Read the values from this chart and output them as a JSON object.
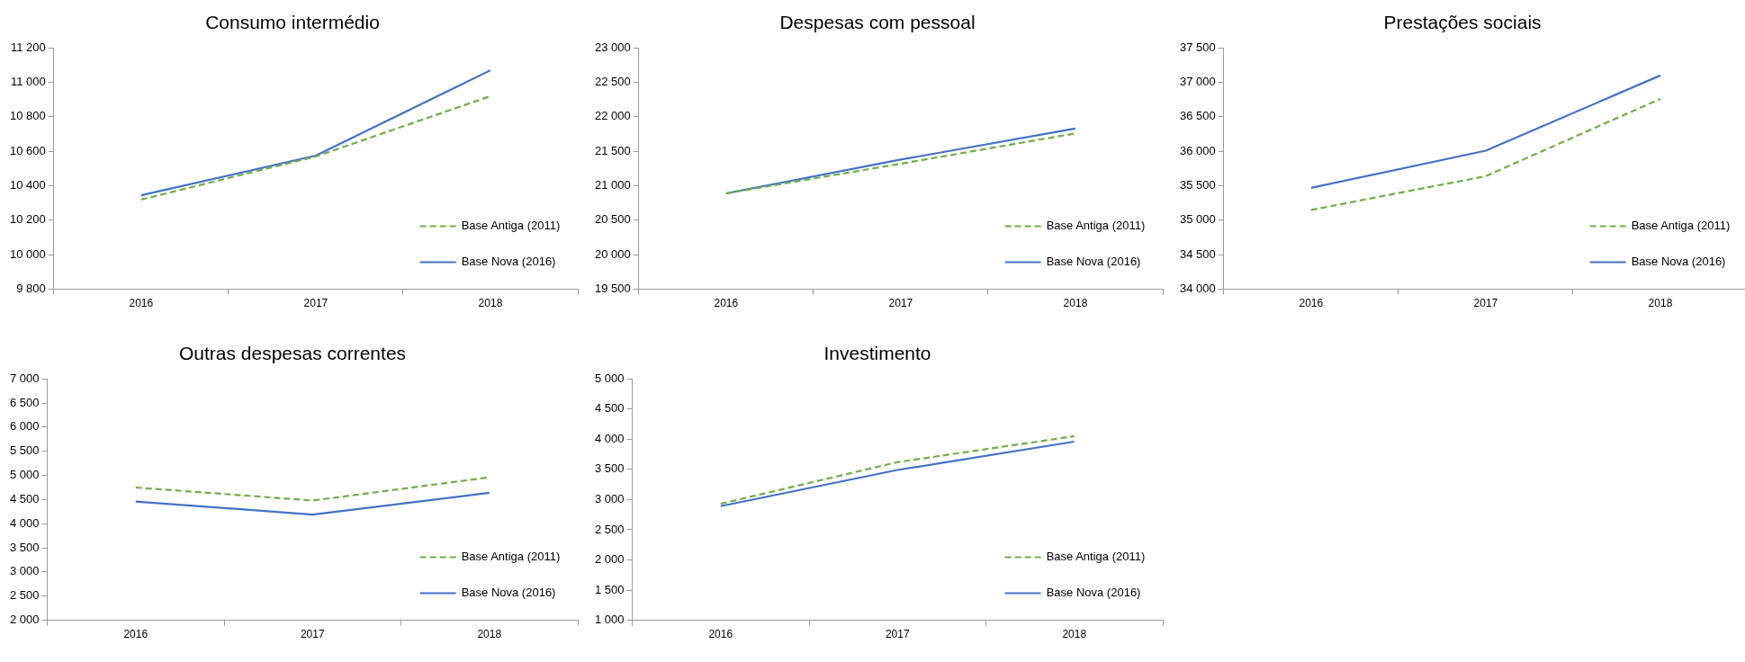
{
  "chart_data": [
    {
      "type": "line",
      "title": "Consumo intermédio",
      "categories": [
        "2016",
        "2017",
        "2018"
      ],
      "ylim": [
        9800,
        11200
      ],
      "yticks": [
        {
          "value": 9800,
          "label": "9 800"
        },
        {
          "value": 10000,
          "label": "10 000"
        },
        {
          "value": 10200,
          "label": "10 200"
        },
        {
          "value": 10400,
          "label": "10 400"
        },
        {
          "value": 10600,
          "label": "10 600"
        },
        {
          "value": 10800,
          "label": "10 800"
        },
        {
          "value": 11000,
          "label": "11 000"
        },
        {
          "value": 11200,
          "label": "11 200"
        }
      ],
      "legend": "bottom right",
      "marker": "none",
      "series": [
        {
          "name": "Base Antiga (2011)",
          "color": "#70ad47",
          "line_style": "dashed",
          "values": [
            10320,
            10570,
            10920
          ]
        },
        {
          "name": "Base Nova (2016)",
          "color": "#4472c4",
          "line_style": "solid",
          "values": [
            10345,
            10575,
            11070
          ]
        }
      ]
    },
    {
      "type": "line",
      "title": "Despesas com pessoal",
      "categories": [
        "2016",
        "2017",
        "2018"
      ],
      "ylim": [
        19500,
        23000
      ],
      "yticks": [
        {
          "value": 19500,
          "label": "19 500"
        },
        {
          "value": 20000,
          "label": "20 000"
        },
        {
          "value": 20500,
          "label": "20 500"
        },
        {
          "value": 21000,
          "label": "21 000"
        },
        {
          "value": 21500,
          "label": "21 500"
        },
        {
          "value": 22000,
          "label": "22 000"
        },
        {
          "value": 22500,
          "label": "22 500"
        },
        {
          "value": 23000,
          "label": "23 000"
        }
      ],
      "legend": "bottom right",
      "marker": "none",
      "series": [
        {
          "name": "Base Antiga (2011)",
          "color": "#70ad47",
          "line_style": "dashed",
          "values": [
            20890,
            21320,
            21760
          ]
        },
        {
          "name": "Base Nova (2016)",
          "color": "#4472c4",
          "line_style": "solid",
          "values": [
            20890,
            21380,
            21830
          ]
        }
      ]
    },
    {
      "type": "line",
      "title": "Prestações sociais",
      "categories": [
        "2016",
        "2017",
        "2018"
      ],
      "ylim": [
        34000,
        37500
      ],
      "yticks": [
        {
          "value": 34000,
          "label": "34 000"
        },
        {
          "value": 34500,
          "label": "34 500"
        },
        {
          "value": 35000,
          "label": "35 000"
        },
        {
          "value": 35500,
          "label": "35 500"
        },
        {
          "value": 36000,
          "label": "36 000"
        },
        {
          "value": 36500,
          "label": "36 500"
        },
        {
          "value": 37000,
          "label": "37 000"
        },
        {
          "value": 37500,
          "label": "37 500"
        }
      ],
      "legend": "bottom right",
      "marker": "none",
      "series": [
        {
          "name": "Base Antiga (2011)",
          "color": "#70ad47",
          "line_style": "dashed",
          "values": [
            35150,
            35640,
            36760
          ]
        },
        {
          "name": "Base Nova (2016)",
          "color": "#4472c4",
          "line_style": "solid",
          "values": [
            35470,
            36010,
            37100
          ]
        }
      ]
    },
    {
      "type": "line",
      "title": "Outras despesas correntes",
      "categories": [
        "2016",
        "2017",
        "2018"
      ],
      "ylim": [
        2000,
        7000
      ],
      "yticks": [
        {
          "value": 2000,
          "label": "2 000"
        },
        {
          "value": 2500,
          "label": "2 500"
        },
        {
          "value": 3000,
          "label": "3 000"
        },
        {
          "value": 3500,
          "label": "3 500"
        },
        {
          "value": 4000,
          "label": "4 000"
        },
        {
          "value": 4500,
          "label": "4 500"
        },
        {
          "value": 5000,
          "label": "5 000"
        },
        {
          "value": 5500,
          "label": "5 500"
        },
        {
          "value": 6000,
          "label": "6 000"
        },
        {
          "value": 6500,
          "label": "6 500"
        },
        {
          "value": 7000,
          "label": "7 000"
        }
      ],
      "legend": "bottom right",
      "marker": "none",
      "series": [
        {
          "name": "Base Antiga (2011)",
          "color": "#70ad47",
          "line_style": "dashed",
          "values": [
            4750,
            4480,
            4960
          ]
        },
        {
          "name": "Base Nova (2016)",
          "color": "#4472c4",
          "line_style": "solid",
          "values": [
            4460,
            4190,
            4640
          ]
        }
      ]
    },
    {
      "type": "line",
      "title": "Investimento",
      "categories": [
        "2016",
        "2017",
        "2018"
      ],
      "ylim": [
        1000,
        5000
      ],
      "yticks": [
        {
          "value": 1000,
          "label": "1 000"
        },
        {
          "value": 1500,
          "label": "1 500"
        },
        {
          "value": 2000,
          "label": "2 000"
        },
        {
          "value": 2500,
          "label": "2 500"
        },
        {
          "value": 3000,
          "label": "3 000"
        },
        {
          "value": 3500,
          "label": "3 500"
        },
        {
          "value": 4000,
          "label": "4 000"
        },
        {
          "value": 4500,
          "label": "4 500"
        },
        {
          "value": 5000,
          "label": "5 000"
        }
      ],
      "legend": "bottom right",
      "marker": "none",
      "series": [
        {
          "name": "Base Antiga (2011)",
          "color": "#70ad47",
          "line_style": "dashed",
          "values": [
            2930,
            3620,
            4050
          ]
        },
        {
          "name": "Base Nova (2016)",
          "color": "#4472c4",
          "line_style": "solid",
          "values": [
            2890,
            3490,
            3960
          ]
        }
      ]
    }
  ]
}
